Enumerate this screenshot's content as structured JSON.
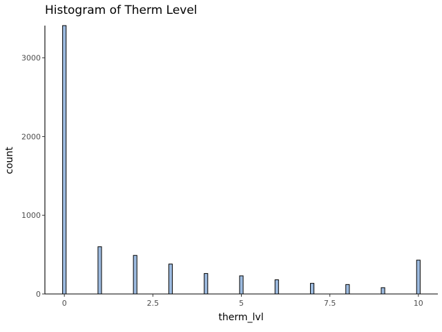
{
  "chart_data": {
    "type": "bar",
    "title": "Histogram of Therm Level",
    "xlabel": "therm_lvl",
    "ylabel": "count",
    "x": [
      0,
      1,
      2,
      3,
      4,
      5,
      6,
      7,
      8,
      9,
      10
    ],
    "values": [
      3410,
      600,
      490,
      380,
      260,
      230,
      180,
      135,
      120,
      80,
      430
    ],
    "bin_width": 0.1,
    "xlim": [
      -0.55,
      10.55
    ],
    "ylim": [
      0,
      3410
    ],
    "xticks": [
      0,
      2.5,
      5,
      7.5,
      10
    ],
    "xtick_labels": [
      "0",
      "2.5",
      "5",
      "7.5",
      "10"
    ],
    "yticks": [
      0,
      1000,
      2000,
      3000
    ],
    "ytick_labels": [
      "0",
      "1000",
      "2000",
      "3000"
    ],
    "grid": false,
    "colors": {
      "fill": "#9dbbe0",
      "outline": "#000000",
      "axis": "#000000"
    }
  }
}
